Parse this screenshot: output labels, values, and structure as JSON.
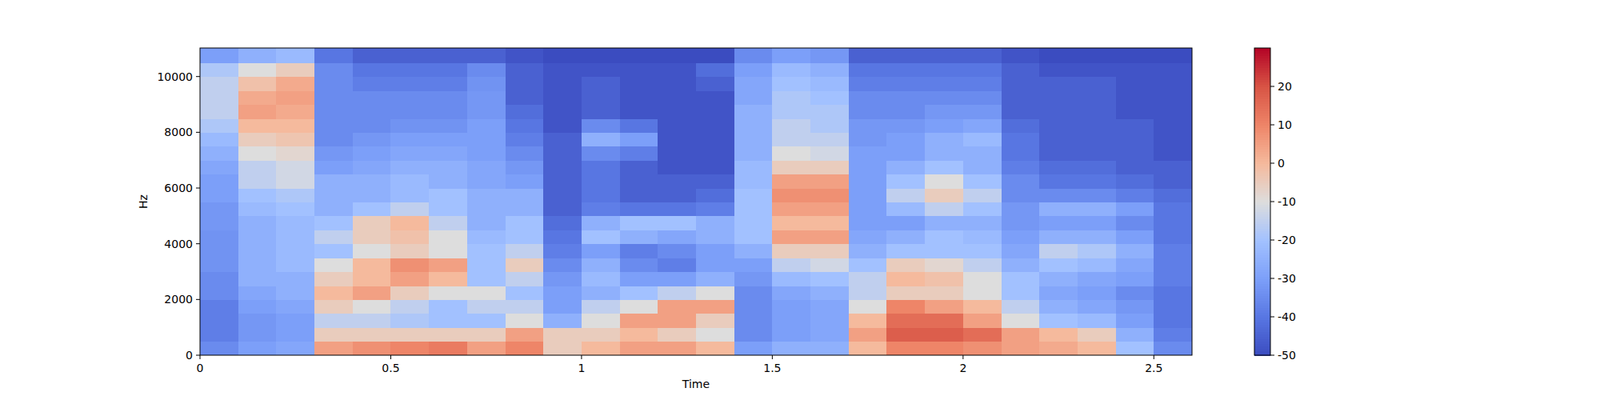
{
  "chart_data": {
    "type": "heatmap",
    "x_label": "Time",
    "y_label": "Hz",
    "time_bins": [
      0,
      0.1,
      0.2,
      0.3,
      0.4,
      0.5,
      0.6,
      0.7,
      0.8,
      0.9,
      1,
      1.1,
      1.2,
      1.3,
      1.4,
      1.5,
      1.6,
      1.7,
      1.8,
      1.9,
      2,
      2.1,
      2.2,
      2.3,
      2.4,
      2.5,
      2.6
    ],
    "freq_bins": [
      0,
      500,
      1000,
      1500,
      2000,
      2500,
      3000,
      3500,
      4000,
      4500,
      5000,
      5500,
      6000,
      6500,
      7000,
      7500,
      8000,
      8500,
      9000,
      9500,
      10000,
      10500,
      11025
    ],
    "cells": [
      [
        -35,
        -38,
        -38,
        -38,
        -35,
        -35,
        -33,
        -33,
        -33,
        -32,
        -32,
        -30,
        -30,
        -28,
        -25,
        -22,
        -18,
        -15,
        -15,
        -15,
        -18,
        -30
      ],
      [
        -30,
        -32,
        -32,
        -30,
        -28,
        -25,
        -25,
        -25,
        -25,
        -25,
        -22,
        -20,
        -15,
        -15,
        -10,
        -5,
        0,
        5,
        3,
        -2,
        -10,
        -25
      ],
      [
        -28,
        -30,
        -30,
        -28,
        -25,
        -25,
        -22,
        -22,
        -22,
        -22,
        -20,
        -18,
        -12,
        -12,
        -8,
        -3,
        0,
        3,
        5,
        3,
        -5,
        -22
      ],
      [
        5,
        -5,
        -15,
        -5,
        0,
        -5,
        -10,
        -20,
        -15,
        -20,
        -25,
        -25,
        -25,
        -30,
        -32,
        -35,
        -35,
        -35,
        -35,
        -35,
        -35,
        -40
      ],
      [
        8,
        -5,
        -15,
        -10,
        5,
        0,
        0,
        -10,
        -5,
        -5,
        -20,
        -25,
        -25,
        -28,
        -30,
        -32,
        -35,
        -35,
        -35,
        -38,
        -40,
        -45
      ],
      [
        10,
        -5,
        -18,
        -15,
        -5,
        5,
        8,
        -5,
        -2,
        0,
        -15,
        -22,
        -22,
        -25,
        -28,
        -30,
        -33,
        -35,
        -35,
        -38,
        -40,
        -45
      ],
      [
        12,
        -5,
        -20,
        -20,
        -10,
        0,
        5,
        -10,
        -10,
        -15,
        -20,
        -20,
        -25,
        -25,
        -28,
        -30,
        -33,
        -35,
        -35,
        -38,
        -40,
        -45
      ],
      [
        5,
        -5,
        -20,
        -15,
        -10,
        -20,
        -20,
        -20,
        -22,
        -25,
        -25,
        -25,
        -28,
        -28,
        -30,
        -30,
        -30,
        -32,
        -32,
        -33,
        -35,
        -45
      ],
      [
        10,
        5,
        -10,
        -15,
        -20,
        -15,
        -5,
        -15,
        -20,
        -20,
        -25,
        -25,
        -30,
        -32,
        -35,
        -38,
        -40,
        -42,
        -45,
        -45,
        -45,
        -48
      ],
      [
        -5,
        -5,
        -25,
        -30,
        -30,
        -32,
        -35,
        -38,
        -40,
        -42,
        -45,
        -45,
        -45,
        -45,
        -45,
        -45,
        -48,
        -48,
        -48,
        -48,
        -48,
        -50
      ],
      [
        0,
        -5,
        -10,
        -15,
        -25,
        -22,
        -25,
        -30,
        -20,
        -25,
        -38,
        -40,
        -40,
        -40,
        -35,
        -25,
        -35,
        -45,
        -45,
        -45,
        -48,
        -50
      ],
      [
        5,
        0,
        5,
        -10,
        -20,
        -30,
        -35,
        -38,
        -25,
        -20,
        -40,
        -45,
        -45,
        -45,
        -38,
        -30,
        -40,
        -48,
        -48,
        -48,
        -48,
        -50
      ],
      [
        5,
        -5,
        5,
        5,
        -15,
        -30,
        -38,
        -35,
        -28,
        -20,
        -40,
        -45,
        -45,
        -48,
        -48,
        -48,
        -48,
        -48,
        -48,
        -48,
        -48,
        -50
      ],
      [
        0,
        -10,
        -5,
        5,
        -10,
        -25,
        -30,
        -30,
        -25,
        -25,
        -38,
        -42,
        -45,
        -48,
        -48,
        -48,
        -48,
        -48,
        -48,
        -45,
        -42,
        -50
      ],
      [
        -30,
        -35,
        -35,
        -35,
        -35,
        -32,
        -30,
        -25,
        -20,
        -20,
        -20,
        -20,
        -22,
        -22,
        -25,
        -25,
        -25,
        -25,
        -28,
        -28,
        -30,
        -35
      ],
      [
        -25,
        -30,
        -30,
        -30,
        -28,
        -22,
        -15,
        -5,
        5,
        0,
        5,
        8,
        5,
        -5,
        -10,
        -15,
        -15,
        -18,
        -18,
        -20,
        -22,
        -30
      ],
      [
        -25,
        -28,
        -28,
        -28,
        -25,
        -20,
        -12,
        -5,
        5,
        0,
        5,
        8,
        5,
        -5,
        -12,
        -15,
        -18,
        -18,
        -20,
        -22,
        -25,
        -32
      ],
      [
        0,
        5,
        0,
        -10,
        -15,
        -15,
        -20,
        -25,
        -28,
        -30,
        -30,
        -30,
        -30,
        -30,
        -30,
        -32,
        -32,
        -35,
        -35,
        -38,
        -40,
        -45
      ],
      [
        10,
        18,
        15,
        10,
        -5,
        0,
        -5,
        -20,
        -25,
        -30,
        -22,
        -15,
        -20,
        -25,
        -30,
        -30,
        -32,
        -35,
        -35,
        -38,
        -40,
        -45
      ],
      [
        10,
        18,
        15,
        5,
        -5,
        -2,
        -8,
        -20,
        -20,
        -25,
        -15,
        -5,
        -10,
        -20,
        -25,
        -25,
        -30,
        -32,
        -35,
        -38,
        -40,
        -45
      ],
      [
        8,
        15,
        5,
        0,
        -10,
        -10,
        -15,
        -20,
        -22,
        -25,
        -20,
        -15,
        -20,
        -25,
        -25,
        -22,
        -28,
        -32,
        -35,
        -38,
        -40,
        -45
      ],
      [
        5,
        5,
        -10,
        -15,
        -20,
        -20,
        -25,
        -28,
        -30,
        -32,
        -32,
        -35,
        -35,
        -38,
        -40,
        -40,
        -42,
        -45,
        -45,
        -45,
        -45,
        -48
      ],
      [
        3,
        0,
        -20,
        -25,
        -28,
        -25,
        -20,
        -15,
        -25,
        -30,
        -25,
        -35,
        -40,
        -42,
        -45,
        -45,
        -45,
        -45,
        -45,
        -45,
        -48,
        -50
      ],
      [
        0,
        -5,
        -22,
        -28,
        -30,
        -28,
        -22,
        -18,
        -25,
        -30,
        -25,
        -35,
        -40,
        -42,
        -45,
        -45,
        -45,
        -45,
        -45,
        -45,
        -48,
        -50
      ],
      [
        -20,
        -25,
        -30,
        -32,
        -35,
        -30,
        -28,
        -25,
        -30,
        -35,
        -30,
        -38,
        -42,
        -45,
        -45,
        -45,
        -45,
        -48,
        -48,
        -48,
        -48,
        -50
      ],
      [
        -35,
        -38,
        -40,
        -40,
        -40,
        -38,
        -38,
        -38,
        -40,
        -40,
        -40,
        -42,
        -45,
        -45,
        -48,
        -48,
        -48,
        -48,
        -48,
        -48,
        -48,
        -50
      ]
    ],
    "xlim": [
      0,
      2.6
    ],
    "ylim": [
      0,
      11025
    ],
    "xticks": [
      0,
      0.5,
      1,
      1.5,
      2,
      2.5
    ],
    "yticks": [
      0,
      2000,
      4000,
      6000,
      8000,
      10000
    ],
    "color": "coolwarm",
    "colorbar_range": [
      -50,
      30
    ],
    "colorbar_ticks": [
      -50,
      -40,
      -30,
      -20,
      -10,
      0,
      10,
      20
    ]
  }
}
